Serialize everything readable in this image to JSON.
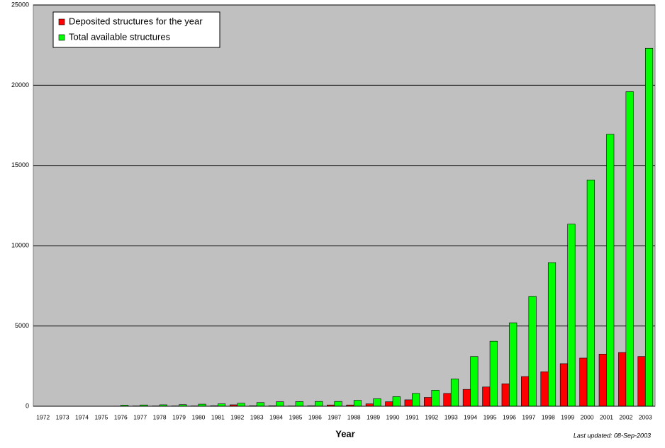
{
  "chart_data": {
    "type": "bar",
    "x_label": "Year",
    "annotation": "Last updated: 08-Sep-2003",
    "categories": [
      "1972",
      "1973",
      "1974",
      "1975",
      "1976",
      "1977",
      "1978",
      "1979",
      "1980",
      "1981",
      "1982",
      "1983",
      "1984",
      "1985",
      "1986",
      "1987",
      "1988",
      "1989",
      "1990",
      "1991",
      "1992",
      "1993",
      "1994",
      "1995",
      "1996",
      "1997",
      "1998",
      "1999",
      "2000",
      "2001",
      "2002",
      "2003"
    ],
    "series": [
      {
        "name": "Deposited structures for the year",
        "color": "#ff0000",
        "values": [
          0,
          0,
          0,
          0,
          10,
          20,
          20,
          20,
          20,
          30,
          90,
          30,
          30,
          20,
          30,
          80,
          80,
          150,
          280,
          400,
          550,
          800,
          1050,
          1200,
          1400,
          1850,
          2150,
          2650,
          3000,
          3250,
          3350,
          3100
        ]
      },
      {
        "name": "Total available structures",
        "color": "#00ff00",
        "values": [
          0,
          0,
          0,
          0,
          69,
          80,
          90,
          100,
          130,
          150,
          190,
          230,
          280,
          290,
          300,
          300,
          370,
          470,
          600,
          800,
          1000,
          1700,
          3100,
          4050,
          5200,
          6850,
          8950,
          11350,
          14100,
          16950,
          19600,
          22300
        ]
      }
    ],
    "ylim": [
      0,
      25000
    ],
    "yticks": [
      0,
      5000,
      10000,
      15000,
      20000,
      25000
    ],
    "grid": true,
    "legend": "top-left"
  }
}
